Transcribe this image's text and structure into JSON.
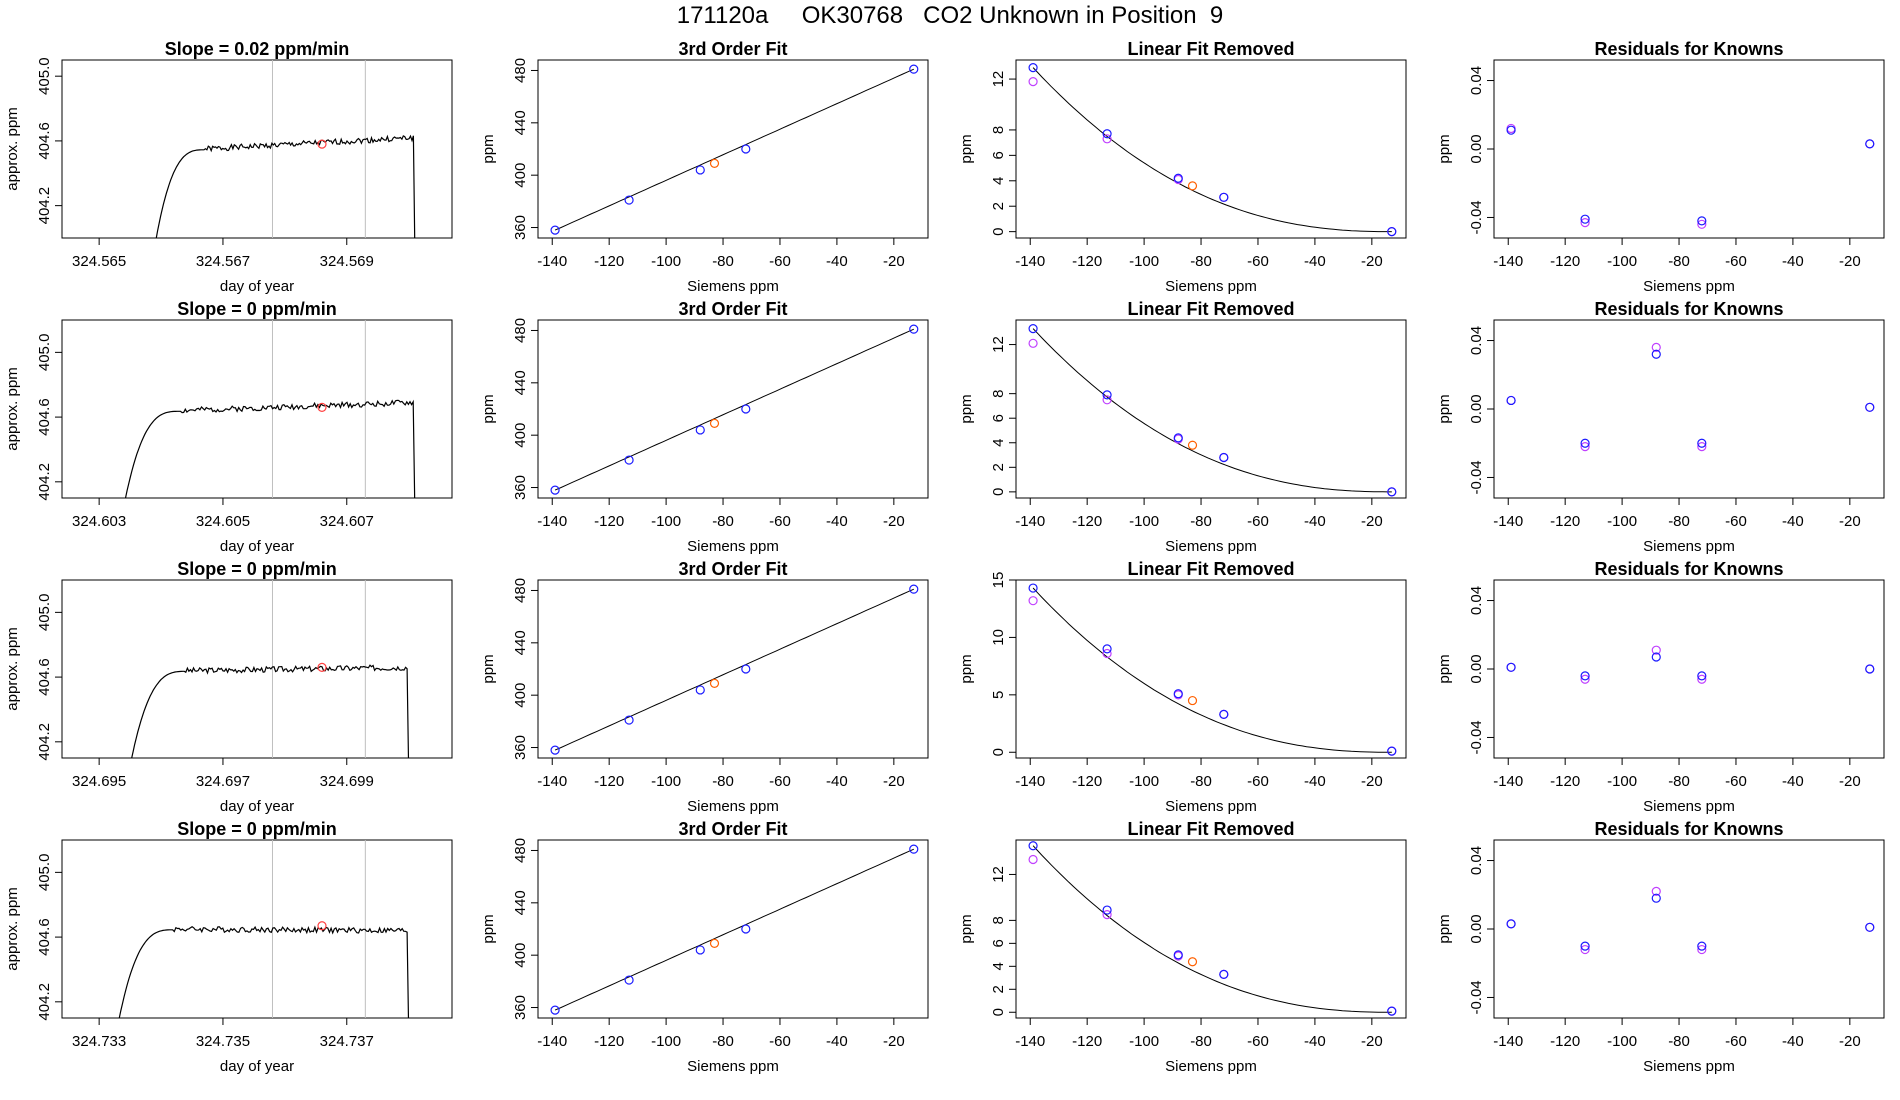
{
  "figure": {
    "title": "171120a     OK30768   CO2 Unknown in Position  9"
  },
  "chart_data": [
    {
      "type": "line",
      "row": 1,
      "panel": "timeseries",
      "title": "Slope =  0.02  ppm/min",
      "xlabel": "day of year",
      "ylabel": "approx. ppm",
      "xlim": [
        324.5644,
        324.5707
      ],
      "ylim": [
        404.0,
        405.1
      ],
      "xticks": [
        "324.565",
        "324.567",
        "324.569"
      ],
      "xtick_values": [
        324.565,
        324.567,
        324.569
      ],
      "yticks": [
        "404.2",
        "404.6",
        "405.0"
      ],
      "ytick_values": [
        404.2,
        404.6,
        405.0
      ],
      "vlines": [
        324.5678,
        324.5693
      ],
      "highlight": {
        "x": 324.5686,
        "y": 404.58
      },
      "trace": {
        "start": 324.5659,
        "end": 324.5701,
        "plateau": 404.57,
        "rise_end": 324.5667,
        "end_level": 404.62,
        "seed": 1
      }
    },
    {
      "type": "scatter",
      "row": 1,
      "panel": "fit",
      "title": "3rd Order Fit",
      "xlabel": "Siemens ppm",
      "ylabel": "ppm",
      "xlim": [
        -145,
        -8
      ],
      "ylim": [
        352,
        488
      ],
      "xticks": [
        -140,
        -120,
        -100,
        -80,
        -60,
        -40,
        -20
      ],
      "yticks": [
        360,
        400,
        440,
        480
      ],
      "knowns": [
        {
          "x": -139,
          "y": 358
        },
        {
          "x": -113,
          "y": 381
        },
        {
          "x": -88,
          "y": 404
        },
        {
          "x": -72,
          "y": 420
        },
        {
          "x": -13,
          "y": 481
        }
      ],
      "unknown": {
        "x": -83,
        "y": 409
      }
    },
    {
      "type": "scatter",
      "row": 1,
      "panel": "linear_removed",
      "title": "Linear Fit Removed",
      "xlabel": "Siemens ppm",
      "ylabel": "ppm",
      "xlim": [
        -145,
        -8
      ],
      "ylim": [
        -0.5,
        13.5
      ],
      "xticks": [
        -140,
        -120,
        -100,
        -80,
        -60,
        -40,
        -20
      ],
      "yticks": [
        0,
        2,
        4,
        6,
        8,
        12
      ],
      "knowns": [
        {
          "x": -139,
          "y": 12.9
        },
        {
          "x": -113,
          "y": 7.7
        },
        {
          "x": -88,
          "y": 4.2
        },
        {
          "x": -72,
          "y": 2.7
        },
        {
          "x": -13,
          "y": 0.0
        }
      ],
      "knowns_alt": [
        {
          "x": -139,
          "y": 11.8
        },
        {
          "x": -113,
          "y": 7.3
        },
        {
          "x": -88,
          "y": 4.1
        },
        {
          "x": -72,
          "y": 2.7
        },
        {
          "x": -13,
          "y": 0.0
        }
      ],
      "unknown": {
        "x": -83,
        "y": 3.6
      },
      "curve_y0": 12.9
    },
    {
      "type": "scatter",
      "row": 1,
      "panel": "residuals",
      "title": "Residuals for Knowns",
      "xlabel": "Siemens ppm",
      "ylabel": "ppm",
      "xlim": [
        -145,
        -8
      ],
      "ylim": [
        -0.052,
        0.052
      ],
      "xticks": [
        -140,
        -120,
        -100,
        -80,
        -60,
        -40,
        -20
      ],
      "yticks": [
        "-0.04",
        "0.00",
        "0.04"
      ],
      "ytick_values": [
        -0.04,
        0.0,
        0.04
      ],
      "knowns": [
        {
          "x": -139,
          "y": 0.011
        },
        {
          "x": -113,
          "y": -0.041
        },
        {
          "x": -72,
          "y": -0.042
        },
        {
          "x": -13,
          "y": 0.003
        }
      ],
      "knowns_alt": [
        {
          "x": -139,
          "y": 0.012
        },
        {
          "x": -113,
          "y": -0.043
        },
        {
          "x": -72,
          "y": -0.044
        },
        {
          "x": -13,
          "y": 0.003
        }
      ]
    },
    {
      "type": "line",
      "row": 2,
      "panel": "timeseries",
      "title": "Slope =  0  ppm/min",
      "xlabel": "day of year",
      "ylabel": "approx. ppm",
      "xlim": [
        324.6024,
        324.6087
      ],
      "ylim": [
        404.1,
        405.2
      ],
      "xticks": [
        "324.603",
        "324.605",
        "324.607"
      ],
      "xtick_values": [
        324.603,
        324.605,
        324.607
      ],
      "yticks": [
        "404.2",
        "404.6",
        "405.0"
      ],
      "ytick_values": [
        404.2,
        404.6,
        405.0
      ],
      "vlines": [
        324.6058,
        324.6073
      ],
      "highlight": {
        "x": 324.6066,
        "y": 404.66
      },
      "trace": {
        "start": 324.6034,
        "end": 324.6081,
        "plateau": 404.66,
        "rise_end": 324.6043,
        "end_level": 404.69,
        "seed": 2
      }
    },
    {
      "type": "scatter",
      "row": 2,
      "panel": "fit",
      "title": "3rd Order Fit",
      "xlabel": "Siemens ppm",
      "ylabel": "ppm",
      "xlim": [
        -145,
        -8
      ],
      "ylim": [
        352,
        488
      ],
      "xticks": [
        -140,
        -120,
        -100,
        -80,
        -60,
        -40,
        -20
      ],
      "yticks": [
        360,
        400,
        440,
        480
      ],
      "knowns": [
        {
          "x": -139,
          "y": 358
        },
        {
          "x": -113,
          "y": 381
        },
        {
          "x": -88,
          "y": 404
        },
        {
          "x": -72,
          "y": 420
        },
        {
          "x": -13,
          "y": 481
        }
      ],
      "unknown": {
        "x": -83,
        "y": 409
      }
    },
    {
      "type": "scatter",
      "row": 2,
      "panel": "linear_removed",
      "title": "Linear Fit Removed",
      "xlabel": "Siemens ppm",
      "ylabel": "ppm",
      "xlim": [
        -145,
        -8
      ],
      "ylim": [
        -0.5,
        14
      ],
      "xticks": [
        -140,
        -120,
        -100,
        -80,
        -60,
        -40,
        -20
      ],
      "yticks": [
        0,
        2,
        4,
        6,
        8,
        12
      ],
      "knowns": [
        {
          "x": -139,
          "y": 13.3
        },
        {
          "x": -113,
          "y": 7.9
        },
        {
          "x": -88,
          "y": 4.4
        },
        {
          "x": -72,
          "y": 2.8
        },
        {
          "x": -13,
          "y": 0.0
        }
      ],
      "knowns_alt": [
        {
          "x": -139,
          "y": 12.1
        },
        {
          "x": -113,
          "y": 7.5
        },
        {
          "x": -88,
          "y": 4.3
        },
        {
          "x": -72,
          "y": 2.8
        },
        {
          "x": -13,
          "y": 0.0
        }
      ],
      "unknown": {
        "x": -83,
        "y": 3.8
      },
      "curve_y0": 13.3
    },
    {
      "type": "scatter",
      "row": 2,
      "panel": "residuals",
      "title": "Residuals for Knowns",
      "xlabel": "Siemens ppm",
      "ylabel": "ppm",
      "xlim": [
        -145,
        -8
      ],
      "ylim": [
        -0.052,
        0.052
      ],
      "xticks": [
        -140,
        -120,
        -100,
        -80,
        -60,
        -40,
        -20
      ],
      "yticks": [
        "-0.04",
        "0.00",
        "0.04"
      ],
      "ytick_values": [
        -0.04,
        0.0,
        0.04
      ],
      "knowns": [
        {
          "x": -139,
          "y": 0.005
        },
        {
          "x": -113,
          "y": -0.02
        },
        {
          "x": -88,
          "y": 0.032
        },
        {
          "x": -72,
          "y": -0.02
        },
        {
          "x": -13,
          "y": 0.001
        }
      ],
      "knowns_alt": [
        {
          "x": -139,
          "y": 0.005
        },
        {
          "x": -113,
          "y": -0.022
        },
        {
          "x": -88,
          "y": 0.036
        },
        {
          "x": -72,
          "y": -0.022
        },
        {
          "x": -13,
          "y": 0.001
        }
      ]
    },
    {
      "type": "line",
      "row": 3,
      "panel": "timeseries",
      "title": "Slope =  0  ppm/min",
      "xlabel": "day of year",
      "ylabel": "approx. ppm",
      "xlim": [
        324.6944,
        324.7007
      ],
      "ylim": [
        404.1,
        405.2
      ],
      "xticks": [
        "324.695",
        "324.697",
        "324.699"
      ],
      "xtick_values": [
        324.695,
        324.697,
        324.699
      ],
      "yticks": [
        "404.2",
        "404.6",
        "405.0"
      ],
      "ytick_values": [
        404.2,
        404.6,
        405.0
      ],
      "vlines": [
        324.6978,
        324.6993
      ],
      "highlight": {
        "x": 324.6986,
        "y": 404.66
      },
      "trace": {
        "start": 324.6955,
        "end": 324.7,
        "plateau": 404.66,
        "rise_end": 324.6964,
        "end_level": 404.66,
        "seed": 3
      }
    },
    {
      "type": "scatter",
      "row": 3,
      "panel": "fit",
      "title": "3rd Order Fit",
      "xlabel": "Siemens ppm",
      "ylabel": "ppm",
      "xlim": [
        -145,
        -8
      ],
      "ylim": [
        352,
        488
      ],
      "xticks": [
        -140,
        -120,
        -100,
        -80,
        -60,
        -40,
        -20
      ],
      "yticks": [
        360,
        400,
        440,
        480
      ],
      "knowns": [
        {
          "x": -139,
          "y": 358
        },
        {
          "x": -113,
          "y": 381
        },
        {
          "x": -88,
          "y": 404
        },
        {
          "x": -72,
          "y": 420
        },
        {
          "x": -13,
          "y": 481
        }
      ],
      "unknown": {
        "x": -83,
        "y": 409
      }
    },
    {
      "type": "scatter",
      "row": 3,
      "panel": "linear_removed",
      "title": "Linear Fit Removed",
      "xlabel": "Siemens ppm",
      "ylabel": "ppm",
      "xlim": [
        -145,
        -8
      ],
      "ylim": [
        -0.5,
        15
      ],
      "xticks": [
        -140,
        -120,
        -100,
        -80,
        -60,
        -40,
        -20
      ],
      "yticks": [
        0,
        5,
        10,
        15
      ],
      "knowns": [
        {
          "x": -139,
          "y": 14.3
        },
        {
          "x": -113,
          "y": 9.0
        },
        {
          "x": -88,
          "y": 5.1
        },
        {
          "x": -72,
          "y": 3.3
        },
        {
          "x": -13,
          "y": 0.1
        }
      ],
      "knowns_alt": [
        {
          "x": -139,
          "y": 13.2
        },
        {
          "x": -113,
          "y": 8.6
        },
        {
          "x": -88,
          "y": 5.0
        },
        {
          "x": -72,
          "y": 3.3
        },
        {
          "x": -13,
          "y": 0.1
        }
      ],
      "unknown": {
        "x": -83,
        "y": 4.5
      },
      "curve_y0": 14.3
    },
    {
      "type": "scatter",
      "row": 3,
      "panel": "residuals",
      "title": "Residuals for Knowns",
      "xlabel": "Siemens ppm",
      "ylabel": "ppm",
      "xlim": [
        -145,
        -8
      ],
      "ylim": [
        -0.052,
        0.052
      ],
      "xticks": [
        -140,
        -120,
        -100,
        -80,
        -60,
        -40,
        -20
      ],
      "yticks": [
        "-0.04",
        "0.00",
        "0.04"
      ],
      "ytick_values": [
        -0.04,
        0.0,
        0.04
      ],
      "knowns": [
        {
          "x": -139,
          "y": 0.001
        },
        {
          "x": -113,
          "y": -0.004
        },
        {
          "x": -88,
          "y": 0.007
        },
        {
          "x": -72,
          "y": -0.004
        },
        {
          "x": -13,
          "y": 0.0
        }
      ],
      "knowns_alt": [
        {
          "x": -139,
          "y": 0.001
        },
        {
          "x": -113,
          "y": -0.006
        },
        {
          "x": -88,
          "y": 0.011
        },
        {
          "x": -72,
          "y": -0.006
        },
        {
          "x": -13,
          "y": 0.0
        }
      ]
    },
    {
      "type": "line",
      "row": 4,
      "panel": "timeseries",
      "title": "Slope =  0  ppm/min",
      "xlabel": "day of year",
      "ylabel": "approx. ppm",
      "xlim": [
        324.7324,
        324.7387
      ],
      "ylim": [
        404.1,
        405.2
      ],
      "xticks": [
        "324.733",
        "324.735",
        "324.737"
      ],
      "xtick_values": [
        324.733,
        324.735,
        324.737
      ],
      "yticks": [
        "404.2",
        "404.6",
        "405.0"
      ],
      "ytick_values": [
        404.2,
        404.6,
        405.0
      ],
      "vlines": [
        324.7358,
        324.7373
      ],
      "highlight": {
        "x": 324.7366,
        "y": 404.67
      },
      "trace": {
        "start": 324.7333,
        "end": 324.738,
        "plateau": 404.67,
        "rise_end": 324.7342,
        "end_level": 404.64,
        "seed": 4
      }
    },
    {
      "type": "scatter",
      "row": 4,
      "panel": "fit",
      "title": "3rd Order Fit",
      "xlabel": "Siemens ppm",
      "ylabel": "ppm",
      "xlim": [
        -145,
        -8
      ],
      "ylim": [
        352,
        488
      ],
      "xticks": [
        -140,
        -120,
        -100,
        -80,
        -60,
        -40,
        -20
      ],
      "yticks": [
        360,
        400,
        440,
        480
      ],
      "knowns": [
        {
          "x": -139,
          "y": 358
        },
        {
          "x": -113,
          "y": 381
        },
        {
          "x": -88,
          "y": 404
        },
        {
          "x": -72,
          "y": 420
        },
        {
          "x": -13,
          "y": 481
        }
      ],
      "unknown": {
        "x": -83,
        "y": 409
      }
    },
    {
      "type": "scatter",
      "row": 4,
      "panel": "linear_removed",
      "title": "Linear Fit Removed",
      "xlabel": "Siemens ppm",
      "ylabel": "ppm",
      "xlim": [
        -145,
        -8
      ],
      "ylim": [
        -0.5,
        15
      ],
      "xticks": [
        -140,
        -120,
        -100,
        -80,
        -60,
        -40,
        -20
      ],
      "yticks": [
        0,
        2,
        4,
        6,
        8,
        12
      ],
      "knowns": [
        {
          "x": -139,
          "y": 14.5
        },
        {
          "x": -113,
          "y": 8.9
        },
        {
          "x": -88,
          "y": 5.0
        },
        {
          "x": -72,
          "y": 3.3
        },
        {
          "x": -13,
          "y": 0.1
        }
      ],
      "knowns_alt": [
        {
          "x": -139,
          "y": 13.3
        },
        {
          "x": -113,
          "y": 8.5
        },
        {
          "x": -88,
          "y": 4.9
        },
        {
          "x": -72,
          "y": 3.3
        },
        {
          "x": -13,
          "y": 0.1
        }
      ],
      "unknown": {
        "x": -83,
        "y": 4.4
      },
      "curve_y0": 14.5
    },
    {
      "type": "scatter",
      "row": 4,
      "panel": "residuals",
      "title": "Residuals for Knowns",
      "xlabel": "Siemens ppm",
      "ylabel": "ppm",
      "xlim": [
        -145,
        -8
      ],
      "ylim": [
        -0.052,
        0.052
      ],
      "xticks": [
        -140,
        -120,
        -100,
        -80,
        -60,
        -40,
        -20
      ],
      "yticks": [
        "-0.04",
        "0.00",
        "0.04"
      ],
      "ytick_values": [
        -0.04,
        0.0,
        0.04
      ],
      "knowns": [
        {
          "x": -139,
          "y": 0.003
        },
        {
          "x": -113,
          "y": -0.01
        },
        {
          "x": -88,
          "y": 0.018
        },
        {
          "x": -72,
          "y": -0.01
        },
        {
          "x": -13,
          "y": 0.001
        }
      ],
      "knowns_alt": [
        {
          "x": -139,
          "y": 0.003
        },
        {
          "x": -113,
          "y": -0.012
        },
        {
          "x": -88,
          "y": 0.022
        },
        {
          "x": -72,
          "y": -0.012
        },
        {
          "x": -13,
          "y": 0.001
        }
      ]
    }
  ],
  "colors": {
    "axis": "#000000",
    "trace": "#000000",
    "vline": "#bebebe",
    "highlight": "#ff4040",
    "known": "#1a1aff",
    "known_alt": "#c040ff",
    "unknown": "#ff6000",
    "curve": "#000000"
  }
}
